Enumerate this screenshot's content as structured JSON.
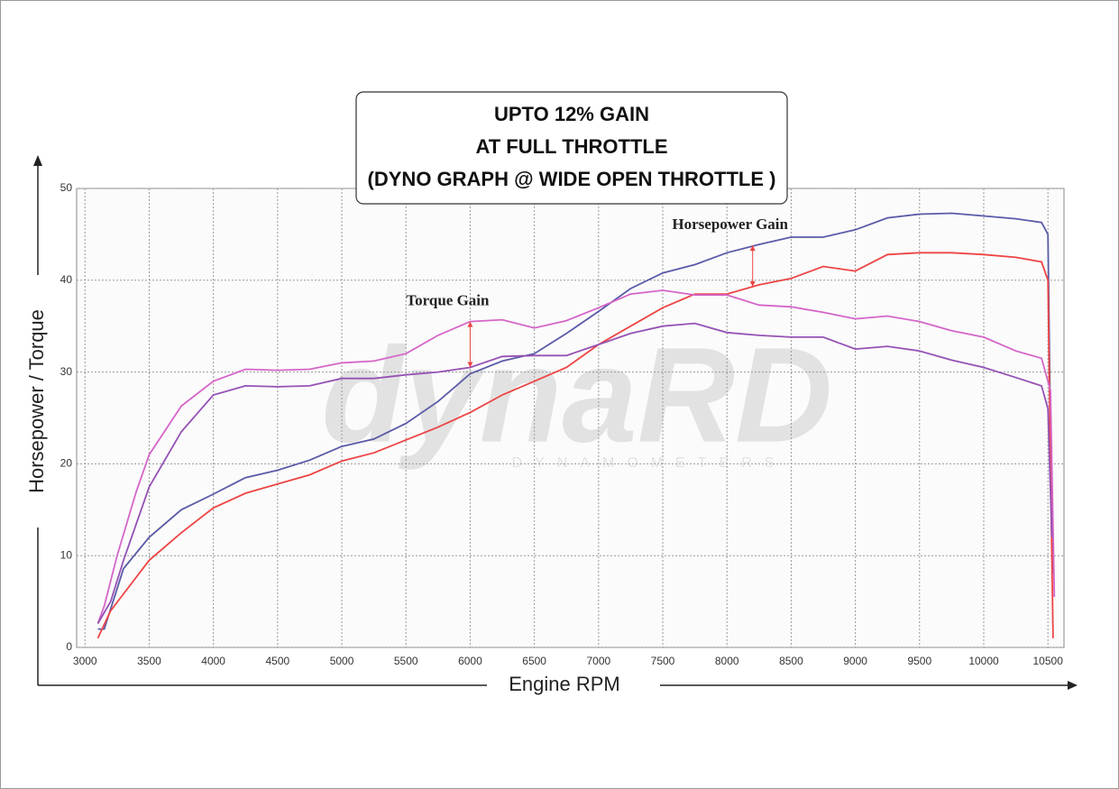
{
  "chart_data": {
    "type": "line",
    "title": [
      "UPTO 12% GAIN",
      "AT FULL THROTTLE",
      "(DYNO GRAPH @ WIDE OPEN THROTTLE )"
    ],
    "x_label": "Engine RPM",
    "y_label": "Horsepower / Torque",
    "watermark": "dynaRD",
    "watermark_sub": "DYNAMOMETERS",
    "xlim": [
      2935,
      10625
    ],
    "ylim": [
      0,
      50
    ],
    "xticks": [
      3000,
      3500,
      4000,
      4500,
      5000,
      5500,
      6000,
      6500,
      7000,
      7500,
      8000,
      8500,
      9000,
      9500,
      10000,
      10500
    ],
    "yticks": [
      0,
      10,
      20,
      30,
      40,
      50
    ],
    "grid": true,
    "series": [
      {
        "color": "#5a5aa8",
        "x": [
          3100,
          3150,
          3300,
          3500,
          3750,
          4000,
          4250,
          4500,
          4750,
          5000,
          5250,
          5500,
          5750,
          6000,
          6250,
          6500,
          6750,
          7000,
          7250,
          7500,
          7750,
          8000,
          8250,
          8500,
          8750,
          9000,
          9250,
          9500,
          9750,
          10000,
          10250,
          10450,
          10500,
          10530,
          10545
        ],
        "values": [
          2,
          2,
          8.6,
          12,
          15,
          16.7,
          18.5,
          19.3,
          20.4,
          21.9,
          22.7,
          24.4,
          26.8,
          29.8,
          31.2,
          32,
          34.2,
          36.6,
          39.1,
          40.8,
          41.7,
          43,
          43.9,
          44.7,
          44.7,
          45.5,
          46.8,
          47.2,
          47.3,
          47,
          46.7,
          46.3,
          45,
          11.6,
          8
        ]
      },
      {
        "color": "#ee4444",
        "x": [
          3100,
          3200,
          3500,
          3750,
          4000,
          4250,
          4500,
          4750,
          5000,
          5250,
          5500,
          5750,
          6000,
          6250,
          6500,
          6750,
          7000,
          7250,
          7500,
          7750,
          8000,
          8250,
          8500,
          8750,
          9000,
          9250,
          9500,
          9750,
          10000,
          10250,
          10450,
          10500,
          10520,
          10540
        ],
        "values": [
          1,
          4,
          9.5,
          12.5,
          15.2,
          16.8,
          17.8,
          18.8,
          20.3,
          21.2,
          22.6,
          24,
          25.6,
          27.5,
          29,
          30.5,
          33,
          35,
          37,
          38.5,
          38.5,
          39.5,
          40.2,
          41.5,
          41,
          42.8,
          43,
          43,
          42.8,
          42.5,
          42,
          40,
          20,
          1
        ]
      },
      {
        "color": "#d565c8",
        "x": [
          3100,
          3150,
          3250,
          3400,
          3500,
          3750,
          4000,
          4250,
          4500,
          4750,
          5000,
          5250,
          5500,
          5750,
          6000,
          6250,
          6500,
          6750,
          7000,
          7250,
          7500,
          7750,
          8000,
          8250,
          8500,
          8750,
          9000,
          9250,
          9500,
          9750,
          10000,
          10250,
          10450,
          10520,
          10550
        ],
        "values": [
          2.6,
          4.5,
          10,
          17,
          21,
          26.3,
          29,
          30.3,
          30.2,
          30.3,
          31,
          31.2,
          32,
          34,
          35.5,
          35.7,
          34.8,
          35.6,
          37,
          38.5,
          38.9,
          38.4,
          38.4,
          37.3,
          37.1,
          36.5,
          35.8,
          36.1,
          35.5,
          34.5,
          33.8,
          32.3,
          31.5,
          28,
          5.5
        ]
      },
      {
        "color": "#9552b5",
        "x": [
          3100,
          3200,
          3300,
          3500,
          3750,
          4000,
          4250,
          4500,
          4750,
          5000,
          5250,
          5500,
          5750,
          6000,
          6250,
          6500,
          6750,
          7000,
          7250,
          7500,
          7750,
          8000,
          8250,
          8500,
          8750,
          9000,
          9250,
          9500,
          9750,
          10000,
          10250,
          10450,
          10500,
          10530
        ],
        "values": [
          2.6,
          5,
          9.5,
          17.5,
          23.5,
          27.5,
          28.5,
          28.4,
          28.5,
          29.3,
          29.3,
          29.7,
          30,
          30.5,
          31.7,
          31.8,
          31.8,
          33,
          34.2,
          35,
          35.3,
          34.3,
          34,
          33.8,
          33.8,
          32.5,
          32.8,
          32.3,
          31.3,
          30.5,
          29.4,
          28.5,
          26,
          12
        ]
      }
    ],
    "annotations": [
      {
        "text": "Torque Gain",
        "x": 6000,
        "from": 30.5,
        "to": 35.5,
        "color": "#ee4444"
      },
      {
        "text": "Horsepower Gain",
        "x": 8200,
        "from": 39.3,
        "to": 43.8,
        "color": "#ee4444"
      }
    ]
  }
}
